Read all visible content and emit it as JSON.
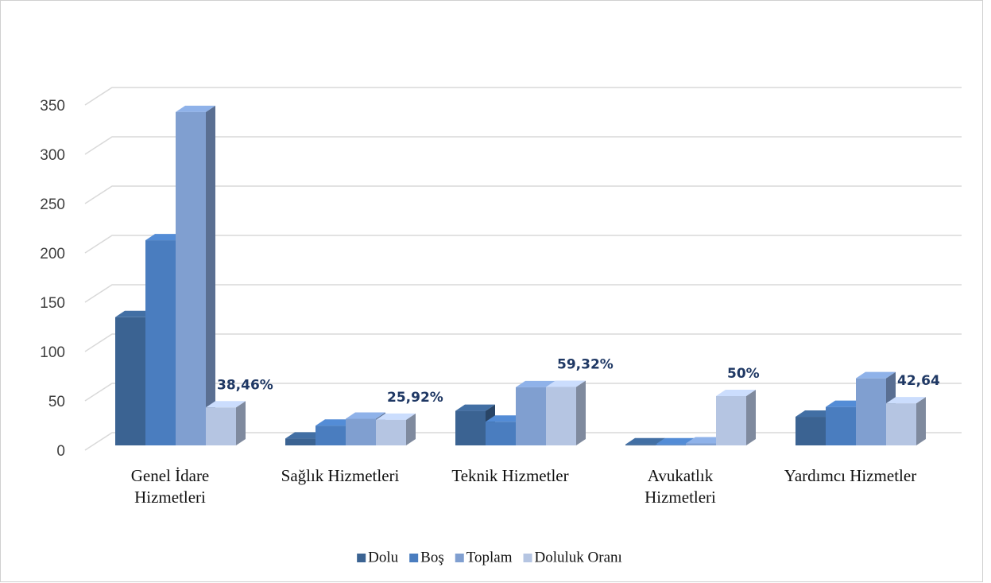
{
  "chart_data": {
    "type": "bar3d",
    "categories": [
      "Genel İdare Hizmetleri",
      "Sağlık Hizmetleri",
      "Teknik Hizmetler",
      "Avukatlık Hizmetleri",
      "Yardımcı Hizmetler"
    ],
    "series": [
      {
        "name": "Dolu",
        "color": "#3b6392",
        "values": [
          130,
          7,
          35,
          1,
          29
        ]
      },
      {
        "name": "Boş",
        "color": "#4a7dbf",
        "values": [
          208,
          20,
          24,
          1,
          39
        ]
      },
      {
        "name": "Toplam",
        "color": "#809fd0",
        "values": [
          338,
          27,
          59,
          2,
          68
        ]
      },
      {
        "name": "Doluluk Oranı",
        "color": "#b5c5e2",
        "values": [
          38.46,
          25.92,
          59.32,
          50,
          42.64
        ],
        "value_labels": [
          "38,46%",
          "25,92%",
          "59,32%",
          "50%",
          "42,64"
        ]
      }
    ],
    "ylim": [
      0,
      350
    ],
    "yticks": [
      0,
      50,
      100,
      150,
      200,
      250,
      300,
      350
    ],
    "grid": true,
    "legend": "bottom"
  }
}
